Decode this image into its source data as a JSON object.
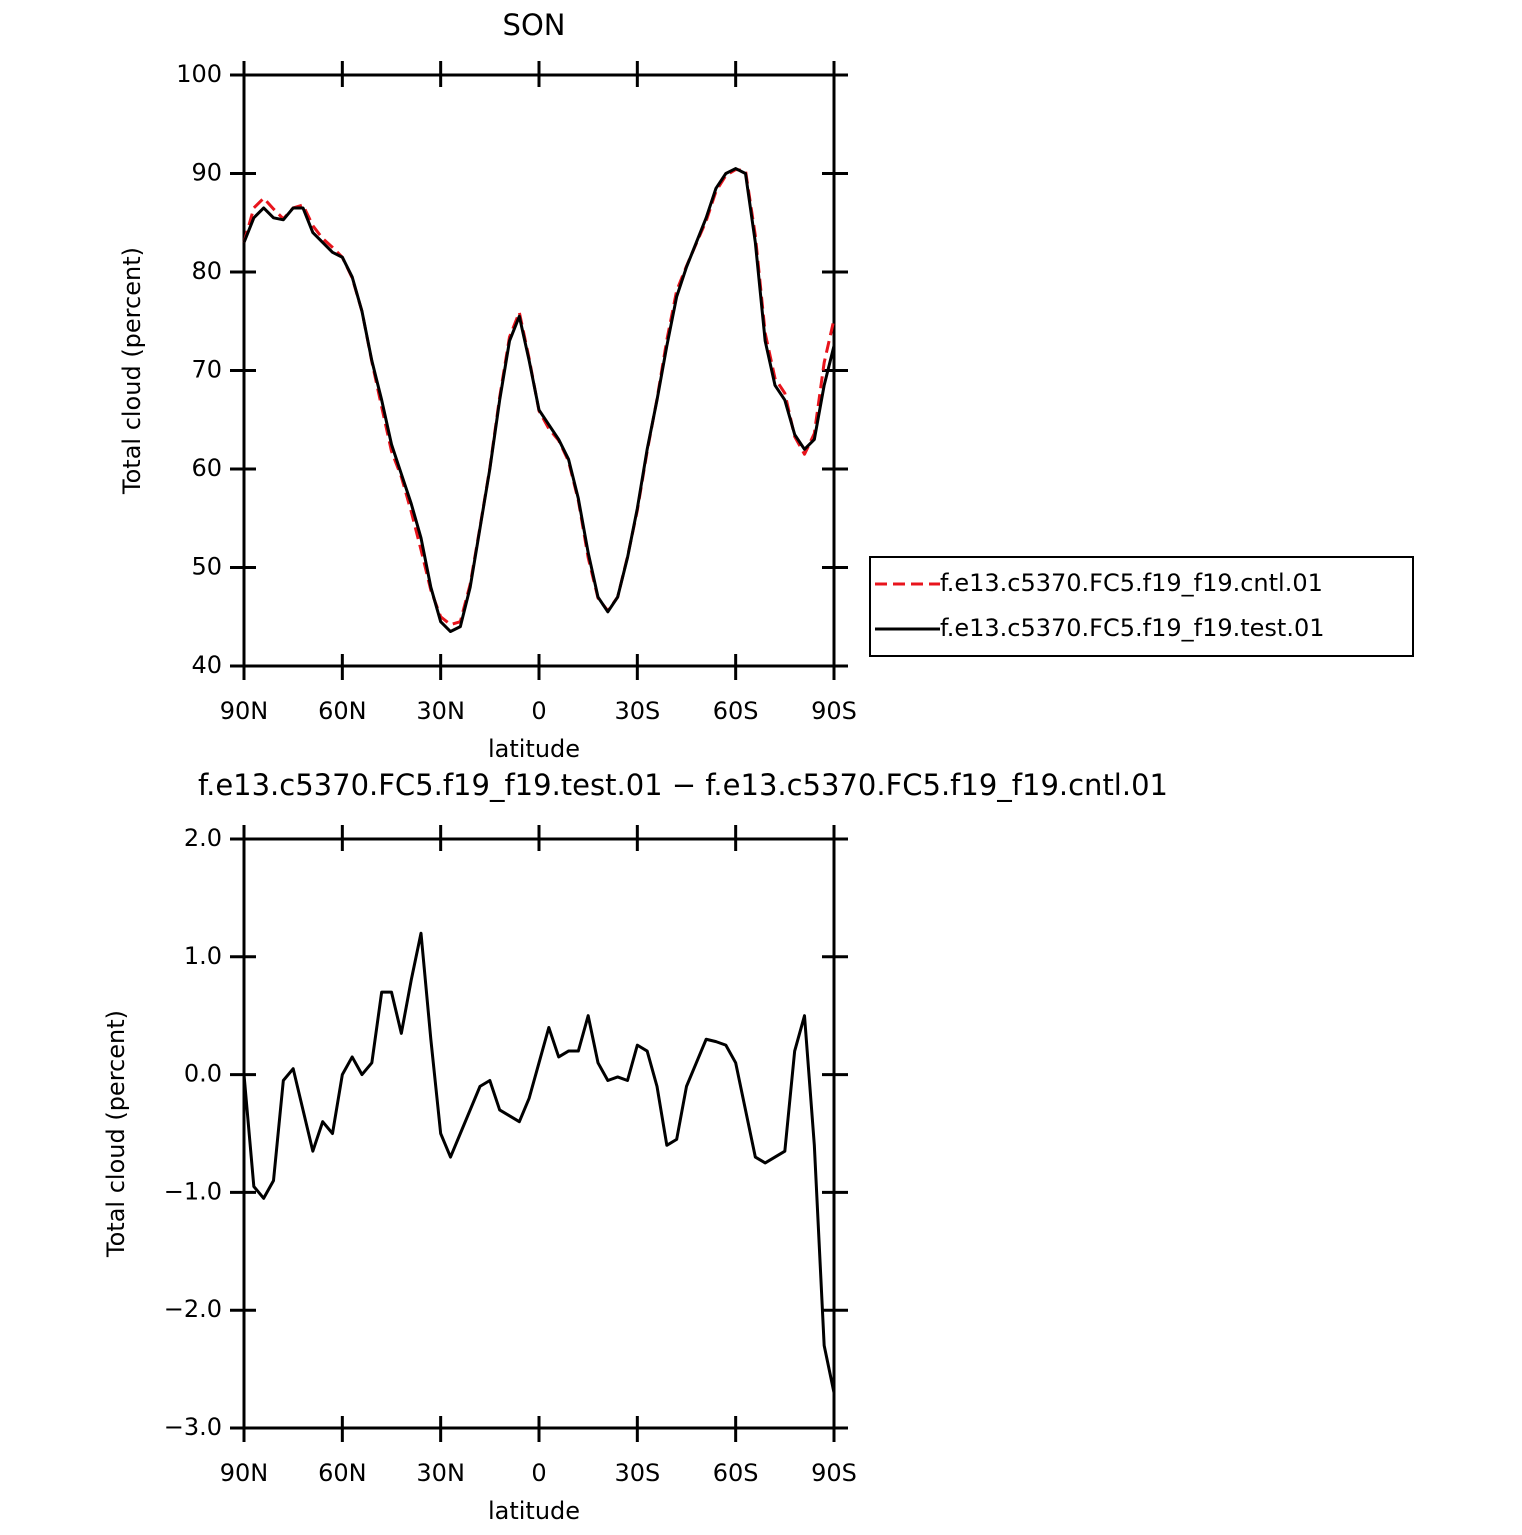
{
  "chart_data": [
    {
      "type": "line",
      "title": "SON",
      "xlabel": "latitude",
      "ylabel": "Total cloud (percent)",
      "x": [
        90,
        87,
        84,
        81,
        78,
        75,
        72,
        69,
        66,
        63,
        60,
        57,
        54,
        51,
        48,
        45,
        42,
        39,
        36,
        33,
        30,
        27,
        24,
        21,
        18,
        15,
        12,
        9,
        6,
        3,
        0,
        -3,
        -6,
        -9,
        -12,
        -15,
        -18,
        -21,
        -24,
        -27,
        -30,
        -33,
        -36,
        -39,
        -42,
        -45,
        -48,
        -51,
        -54,
        -57,
        -60,
        -63,
        -66,
        -69,
        -72,
        -75,
        -78,
        -81,
        -84,
        -87,
        -90
      ],
      "xlim": [
        90,
        -90
      ],
      "xticks": [
        {
          "value": 90,
          "label": "90N"
        },
        {
          "value": 60,
          "label": "60N"
        },
        {
          "value": 30,
          "label": "30N"
        },
        0,
        {
          "value": -30,
          "label": "30S"
        },
        {
          "value": -60,
          "label": "60S"
        },
        {
          "value": -90,
          "label": "90S"
        }
      ],
      "ylim": [
        40,
        100
      ],
      "yticks": [
        40,
        50,
        60,
        70,
        80,
        90,
        100
      ],
      "legend": "right",
      "series": [
        {
          "name": "f.e13.c5370.FC5.f19_f19.cntl.01",
          "color": "#e8141c",
          "dashed": true,
          "values": [
            83,
            86.5,
            87.5,
            86.4,
            85.4,
            86.5,
            86.8,
            84.7,
            83.4,
            82.5,
            81.5,
            79.4,
            76,
            70.9,
            66.3,
            61.8,
            59.2,
            55.7,
            51.8,
            47.7,
            45,
            44.2,
            44.5,
            48.3,
            54.1,
            60.1,
            67.3,
            73.4,
            75.9,
            71.2,
            65.9,
            64.1,
            62.9,
            60.8,
            56.8,
            51,
            46.9,
            45.6,
            47,
            51.1,
            55.8,
            61.8,
            67.1,
            73.1,
            78.1,
            80.6,
            82.9,
            85.2,
            88.2,
            89.8,
            90.4,
            90.3,
            83.7,
            73.8,
            69.2,
            67.7,
            63.3,
            61.5,
            63.6,
            70.8,
            75.2
          ]
        },
        {
          "name": "f.e13.c5370.FC5.f19_f19.test.01",
          "color": "#000000",
          "dashed": false,
          "values": [
            83,
            85.5,
            86.5,
            85.5,
            85.3,
            86.5,
            86.5,
            84,
            83,
            82,
            81.5,
            79.5,
            76,
            71,
            67,
            62.5,
            59.5,
            56.5,
            53,
            48,
            44.5,
            43.5,
            44,
            48,
            54,
            60,
            67,
            73,
            75.5,
            71,
            66,
            64.5,
            63,
            61,
            57,
            51.5,
            47,
            45.5,
            47,
            51,
            56,
            62,
            67,
            72.5,
            77.5,
            80.5,
            83,
            85.5,
            88.5,
            90,
            90.5,
            90,
            83,
            73,
            68.5,
            67,
            63.5,
            62,
            63,
            68.5,
            72.5
          ]
        }
      ]
    },
    {
      "type": "line",
      "title": "f.e13.c5370.FC5.f19_f19.test.01 − f.e13.c5370.FC5.f19_f19.cntl.01",
      "xlabel": "latitude",
      "ylabel": "Total cloud (percent)",
      "x": [
        90,
        87,
        84,
        81,
        78,
        75,
        72,
        69,
        66,
        63,
        60,
        57,
        54,
        51,
        48,
        45,
        42,
        39,
        36,
        33,
        30,
        27,
        24,
        21,
        18,
        15,
        12,
        9,
        6,
        3,
        0,
        -3,
        -6,
        -9,
        -12,
        -15,
        -18,
        -21,
        -24,
        -27,
        -30,
        -33,
        -36,
        -39,
        -42,
        -45,
        -48,
        -51,
        -54,
        -57,
        -60,
        -63,
        -66,
        -69,
        -72,
        -75,
        -78,
        -81,
        -84,
        -87,
        -90
      ],
      "xlim": [
        90,
        -90
      ],
      "xticks": [
        {
          "value": 90,
          "label": "90N"
        },
        {
          "value": 60,
          "label": "60N"
        },
        {
          "value": 30,
          "label": "30N"
        },
        0,
        {
          "value": -30,
          "label": "30S"
        },
        {
          "value": -60,
          "label": "60S"
        },
        {
          "value": -90,
          "label": "90S"
        }
      ],
      "ylim": [
        -3,
        2
      ],
      "yticks": [
        {
          "value": -3,
          "label": "−3.0"
        },
        {
          "value": -2,
          "label": "−2.0"
        },
        {
          "value": -1,
          "label": "−1.0"
        },
        {
          "value": 0,
          "label": "0.0"
        },
        {
          "value": 1,
          "label": "1.0"
        },
        {
          "value": 2,
          "label": "2.0"
        }
      ],
      "series": [
        {
          "color": "#000000",
          "dashed": false,
          "values": [
            0,
            -0.95,
            -1.05,
            -0.9,
            -0.05,
            0.05,
            -0.3,
            -0.65,
            -0.4,
            -0.5,
            0,
            0.15,
            0,
            0.1,
            0.7,
            0.7,
            0.35,
            0.8,
            1.2,
            0.3,
            -0.5,
            -0.7,
            -0.5,
            -0.3,
            -0.1,
            -0.05,
            -0.3,
            -0.35,
            -0.4,
            -0.2,
            0.1,
            0.4,
            0.15,
            0.2,
            0.2,
            0.5,
            0.1,
            -0.05,
            -0.02,
            -0.05,
            0.25,
            0.2,
            -0.1,
            -0.6,
            -0.55,
            -0.1,
            0.1,
            0.3,
            0.28,
            0.25,
            0.1,
            -0.3,
            -0.7,
            -0.75,
            -0.7,
            -0.65,
            0.2,
            0.5,
            -0.6,
            -2.3,
            -2.7
          ]
        }
      ]
    }
  ]
}
